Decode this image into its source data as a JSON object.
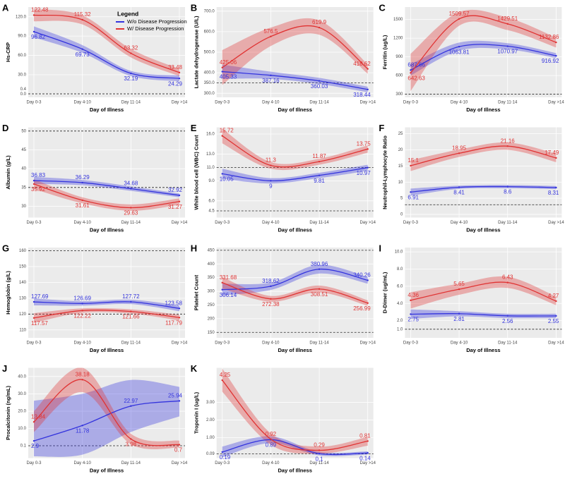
{
  "chart_data": [
    {
      "type": "line",
      "panel": "A",
      "ylabel": "Hs-CRP",
      "xlabel": "Day of Illness",
      "categories": [
        "Day 0-3",
        "Day 4-10",
        "Day 11-14",
        "Day >14"
      ],
      "legend": "top-right",
      "legend_title": "Legend",
      "series": [
        {
          "name": "W/o Disease Progression",
          "color": "#3333dd",
          "values": [
            96.82,
            69.73,
            32.19,
            24.29
          ],
          "lower": [
            88,
            64,
            28,
            20
          ],
          "upper": [
            105,
            76,
            36,
            29
          ]
        },
        {
          "name": "W/ Disease Progression",
          "color": "#e03333",
          "values": [
            122.48,
            115.32,
            63.32,
            33.48
          ],
          "lower": [
            113,
            108,
            57,
            28
          ],
          "upper": [
            132,
            122,
            70,
            39
          ]
        }
      ],
      "ylim": [
        -5,
        135
      ],
      "yticks": [
        {
          "value": 0,
          "label": "0.0"
        },
        0.4,
        {
          "value": 30,
          "label": "30.0"
        },
        {
          "value": 60,
          "label": "60.0"
        },
        {
          "value": 90,
          "label": "90.0"
        },
        {
          "value": 120,
          "label": "120.0"
        }
      ],
      "reference_lines": [
        0.4
      ]
    },
    {
      "type": "line",
      "panel": "B",
      "ylabel": "Lactate dehydrogenase (U/L)",
      "xlabel": "Day of Illness",
      "categories": [
        "Day 0-3",
        "Day 4-10",
        "Day 11-14",
        "Day >14"
      ],
      "series": [
        {
          "color": "#3333dd",
          "values": [
            405.33,
            387.16,
            360.03,
            318.44
          ],
          "lower": [
            370,
            370,
            345,
            305
          ],
          "upper": [
            440,
            405,
            375,
            332
          ]
        },
        {
          "color": "#e03333",
          "values": [
            425.06,
            576.5,
            619.9,
            418.62
          ],
          "lower": [
            340,
            530,
            585,
            395
          ],
          "upper": [
            510,
            620,
            655,
            440
          ]
        }
      ],
      "ylim": [
        280,
        720
      ],
      "yticks": [
        {
          "value": 300,
          "label": "300.0"
        },
        {
          "value": 350,
          "label": "350.0"
        },
        {
          "value": 400,
          "label": "400.0"
        },
        {
          "value": 500,
          "label": "500.0"
        },
        {
          "value": 600,
          "label": "600.0"
        },
        {
          "value": 700,
          "label": "700.0"
        }
      ],
      "reference_lines": [
        350
      ]
    },
    {
      "type": "line",
      "panel": "C",
      "ylabel": "Ferritin (ug/L)",
      "xlabel": "Day of Illness",
      "categories": [
        "Day 0-3",
        "Day 4-10",
        "Day 11-14",
        "Day >14"
      ],
      "series": [
        {
          "color": "#3333dd",
          "values": [
            687.66,
            1063.81,
            1070.97,
            916.92
          ],
          "lower": [
            600,
            1000,
            1020,
            880
          ],
          "upper": [
            780,
            1130,
            1120,
            960
          ]
        },
        {
          "color": "#e03333",
          "values": [
            642.63,
            1509.57,
            1429.51,
            1132.86
          ],
          "lower": [
            350,
            1400,
            1330,
            1050
          ],
          "upper": [
            950,
            1620,
            1530,
            1210
          ]
        }
      ],
      "ylim": [
        250,
        1700
      ],
      "yticks": [
        300,
        600,
        900,
        1200,
        1500
      ],
      "reference_lines": [
        300
      ]
    },
    {
      "type": "line",
      "panel": "D",
      "ylabel": "Albumin (g/L)",
      "xlabel": "Day of Illness",
      "categories": [
        "Day 0-3",
        "Day 4-10",
        "Day 11-14",
        "Day >14"
      ],
      "series": [
        {
          "color": "#3333dd",
          "values": [
            36.83,
            36.29,
            34.68,
            32.92
          ],
          "lower": [
            35.9,
            35.6,
            34.1,
            32.4
          ],
          "upper": [
            37.8,
            37,
            35.3,
            33.4
          ]
        },
        {
          "color": "#e03333",
          "values": [
            35.92,
            31.61,
            29.63,
            31.27
          ],
          "lower": [
            34.6,
            30.8,
            28.8,
            30.4
          ],
          "upper": [
            37.2,
            32.4,
            30.5,
            32.1
          ]
        }
      ],
      "ylim": [
        27,
        51
      ],
      "yticks": [
        30,
        35,
        40,
        45,
        50
      ],
      "reference_lines": [
        35,
        50
      ]
    },
    {
      "type": "line",
      "panel": "E",
      "ylabel": "White blood cell (WBC) Count",
      "xlabel": "Day of Illness",
      "categories": [
        "Day 0-3",
        "Day 4-10",
        "Day 11-14",
        "Day >14"
      ],
      "series": [
        {
          "color": "#3333dd",
          "values": [
            10.05,
            9,
            9.81,
            10.97
          ],
          "lower": [
            9.3,
            8.6,
            9.4,
            10.5
          ],
          "upper": [
            10.8,
            9.4,
            10.2,
            11.4
          ]
        },
        {
          "color": "#e03333",
          "values": [
            15.72,
            11.3,
            11.87,
            13.75
          ],
          "lower": [
            14.6,
            10.8,
            11.4,
            13.2
          ],
          "upper": [
            16.8,
            11.8,
            12.3,
            14.3
          ]
        }
      ],
      "ylim": [
        3.5,
        17
      ],
      "yticks": [
        4.5,
        {
          "value": 6,
          "label": "6.0"
        },
        {
          "value": 9,
          "label": "9.0"
        },
        {
          "value": 11,
          "label": "11.0"
        },
        {
          "value": 13,
          "label": "13.0"
        },
        {
          "value": 16,
          "label": "16.0"
        }
      ],
      "reference_lines": [
        4.5,
        11
      ]
    },
    {
      "type": "line",
      "panel": "F",
      "ylabel": "Neutrophil-Lymphocyte Ratio",
      "xlabel": "Day of Illness",
      "categories": [
        "Day 0-3",
        "Day 4-10",
        "Day 11-14",
        "Day >14"
      ],
      "series": [
        {
          "color": "#3333dd",
          "values": [
            6.91,
            8.41,
            8.6,
            8.31
          ],
          "lower": [
            5.8,
            7.9,
            8.1,
            7.8
          ],
          "upper": [
            8,
            8.9,
            9.1,
            8.8
          ]
        },
        {
          "color": "#e03333",
          "values": [
            15.1,
            18.95,
            21.16,
            17.49
          ],
          "lower": [
            13.4,
            17.8,
            20,
            16.2
          ],
          "upper": [
            16.8,
            20.1,
            22.3,
            18.8
          ]
        }
      ],
      "ylim": [
        -1,
        27
      ],
      "yticks": [
        0,
        5,
        10,
        15,
        20,
        25
      ],
      "reference_lines": [
        3
      ]
    },
    {
      "type": "line",
      "panel": "G",
      "ylabel": "Hemoglobin (g/L)",
      "xlabel": "Day of Illness",
      "categories": [
        "Day 0-3",
        "Day 4-10",
        "Day 11-14",
        "Day >14"
      ],
      "series": [
        {
          "color": "#3333dd",
          "values": [
            127.69,
            126.69,
            127.72,
            123.58
          ],
          "lower": [
            125.5,
            125.3,
            126.3,
            121.8
          ],
          "upper": [
            129.9,
            128.1,
            129.1,
            125.4
          ]
        },
        {
          "color": "#e03333",
          "values": [
            117.57,
            122.22,
            121.66,
            117.79
          ],
          "lower": [
            114.5,
            120.8,
            120.3,
            116
          ],
          "upper": [
            120.6,
            123.6,
            123,
            119.6
          ]
        }
      ],
      "ylim": [
        105,
        162
      ],
      "yticks": [
        110,
        120,
        130,
        140,
        150,
        160
      ],
      "reference_lines": [
        120,
        160
      ]
    },
    {
      "type": "line",
      "panel": "H",
      "ylabel": "Platelet Count",
      "xlabel": "Day of Illness",
      "categories": [
        "Day 0-3",
        "Day 4-10",
        "Day 11-14",
        "Day >14"
      ],
      "series": [
        {
          "color": "#3333dd",
          "values": [
            306.14,
            318.62,
            380.96,
            340.26
          ],
          "lower": [
            285,
            305,
            365,
            328
          ],
          "upper": [
            328,
            332,
            397,
            352
          ]
        },
        {
          "color": "#e03333",
          "values": [
            331.68,
            272.38,
            308.51,
            256.99
          ],
          "lower": [
            310,
            262,
            296,
            247
          ],
          "upper": [
            352,
            283,
            321,
            267
          ]
        }
      ],
      "ylim": [
        130,
        460
      ],
      "yticks": [
        150,
        200,
        250,
        300,
        350,
        400,
        450
      ],
      "reference_lines": [
        150,
        450
      ]
    },
    {
      "type": "line",
      "panel": "I",
      "ylabel": "D-Dimer (ug/mL)",
      "xlabel": "Day of Illness",
      "categories": [
        "Day 0-3",
        "Day 4-10",
        "Day 11-14",
        "Day >14"
      ],
      "series": [
        {
          "color": "#3333dd",
          "values": [
            2.75,
            2.81,
            2.56,
            2.55
          ],
          "lower": [
            2.2,
            2.5,
            2.3,
            2.3
          ],
          "upper": [
            3.3,
            3.1,
            2.8,
            2.8
          ]
        },
        {
          "color": "#e03333",
          "values": [
            4.36,
            5.65,
            6.43,
            4.27
          ],
          "lower": [
            3.4,
            5,
            5.8,
            3.8
          ],
          "upper": [
            5.3,
            6.3,
            7.1,
            4.8
          ]
        }
      ],
      "ylim": [
        0,
        10.5
      ],
      "yticks": [
        {
          "value": 1,
          "label": "1.0"
        },
        {
          "value": 2,
          "label": "2.0"
        },
        {
          "value": 4,
          "label": "4.0"
        },
        {
          "value": 6,
          "label": "6.0"
        },
        {
          "value": 8,
          "label": "8.0"
        },
        {
          "value": 10,
          "label": "10.0"
        }
      ],
      "reference_lines": [
        1
      ]
    },
    {
      "type": "line",
      "panel": "J",
      "ylabel": "Procalcitonin (ng/mL)",
      "xlabel": "Day of Illness",
      "categories": [
        "Day 0-3",
        "Day 4-10",
        "Day 11-14",
        "Day >14"
      ],
      "series": [
        {
          "color": "#3333dd",
          "values": [
            2.9,
            11.78,
            22.97,
            25.94
          ],
          "lower": [
            -6,
            -5,
            8,
            17
          ],
          "upper": [
            26,
            30,
            38,
            34
          ]
        },
        {
          "color": "#e03333",
          "values": [
            13.84,
            38.18,
            3.98,
            0.7
          ],
          "lower": [
            8,
            31,
            1,
            -1
          ],
          "upper": [
            20,
            45,
            7,
            3
          ]
        }
      ],
      "ylim": [
        -7,
        45
      ],
      "yticks": [
        0.1,
        {
          "value": 10,
          "label": "10.0"
        },
        {
          "value": 20,
          "label": "20.0"
        },
        {
          "value": 30,
          "label": "30.0"
        },
        {
          "value": 40,
          "label": "40.0"
        }
      ],
      "reference_lines": [
        0.1
      ]
    },
    {
      "type": "line",
      "panel": "K",
      "ylabel": "Troponin I (ug/L)",
      "xlabel": "Day of Illness",
      "categories": [
        "Day 0-3",
        "Day 4-10",
        "Day 11-14",
        "Day >14"
      ],
      "series": [
        {
          "color": "#3333dd",
          "values": [
            0.19,
            0.89,
            0.1,
            0.14
          ],
          "lower": [
            -0.1,
            0.7,
            0,
            0.05
          ],
          "upper": [
            0.5,
            1.08,
            0.2,
            0.23
          ]
        },
        {
          "color": "#e03333",
          "values": [
            4.25,
            0.92,
            0.29,
            0.81
          ],
          "lower": [
            3.6,
            0.6,
            0.1,
            0.55
          ],
          "upper": [
            4.9,
            1.25,
            0.5,
            1.05
          ]
        }
      ],
      "ylim": [
        -0.15,
        4.95
      ],
      "yticks": [
        0.09,
        {
          "value": 1,
          "label": "1.00"
        },
        {
          "value": 2,
          "label": "2.00"
        },
        {
          "value": 3,
          "label": "3.00"
        }
      ],
      "reference_lines": [
        0.09
      ]
    }
  ]
}
